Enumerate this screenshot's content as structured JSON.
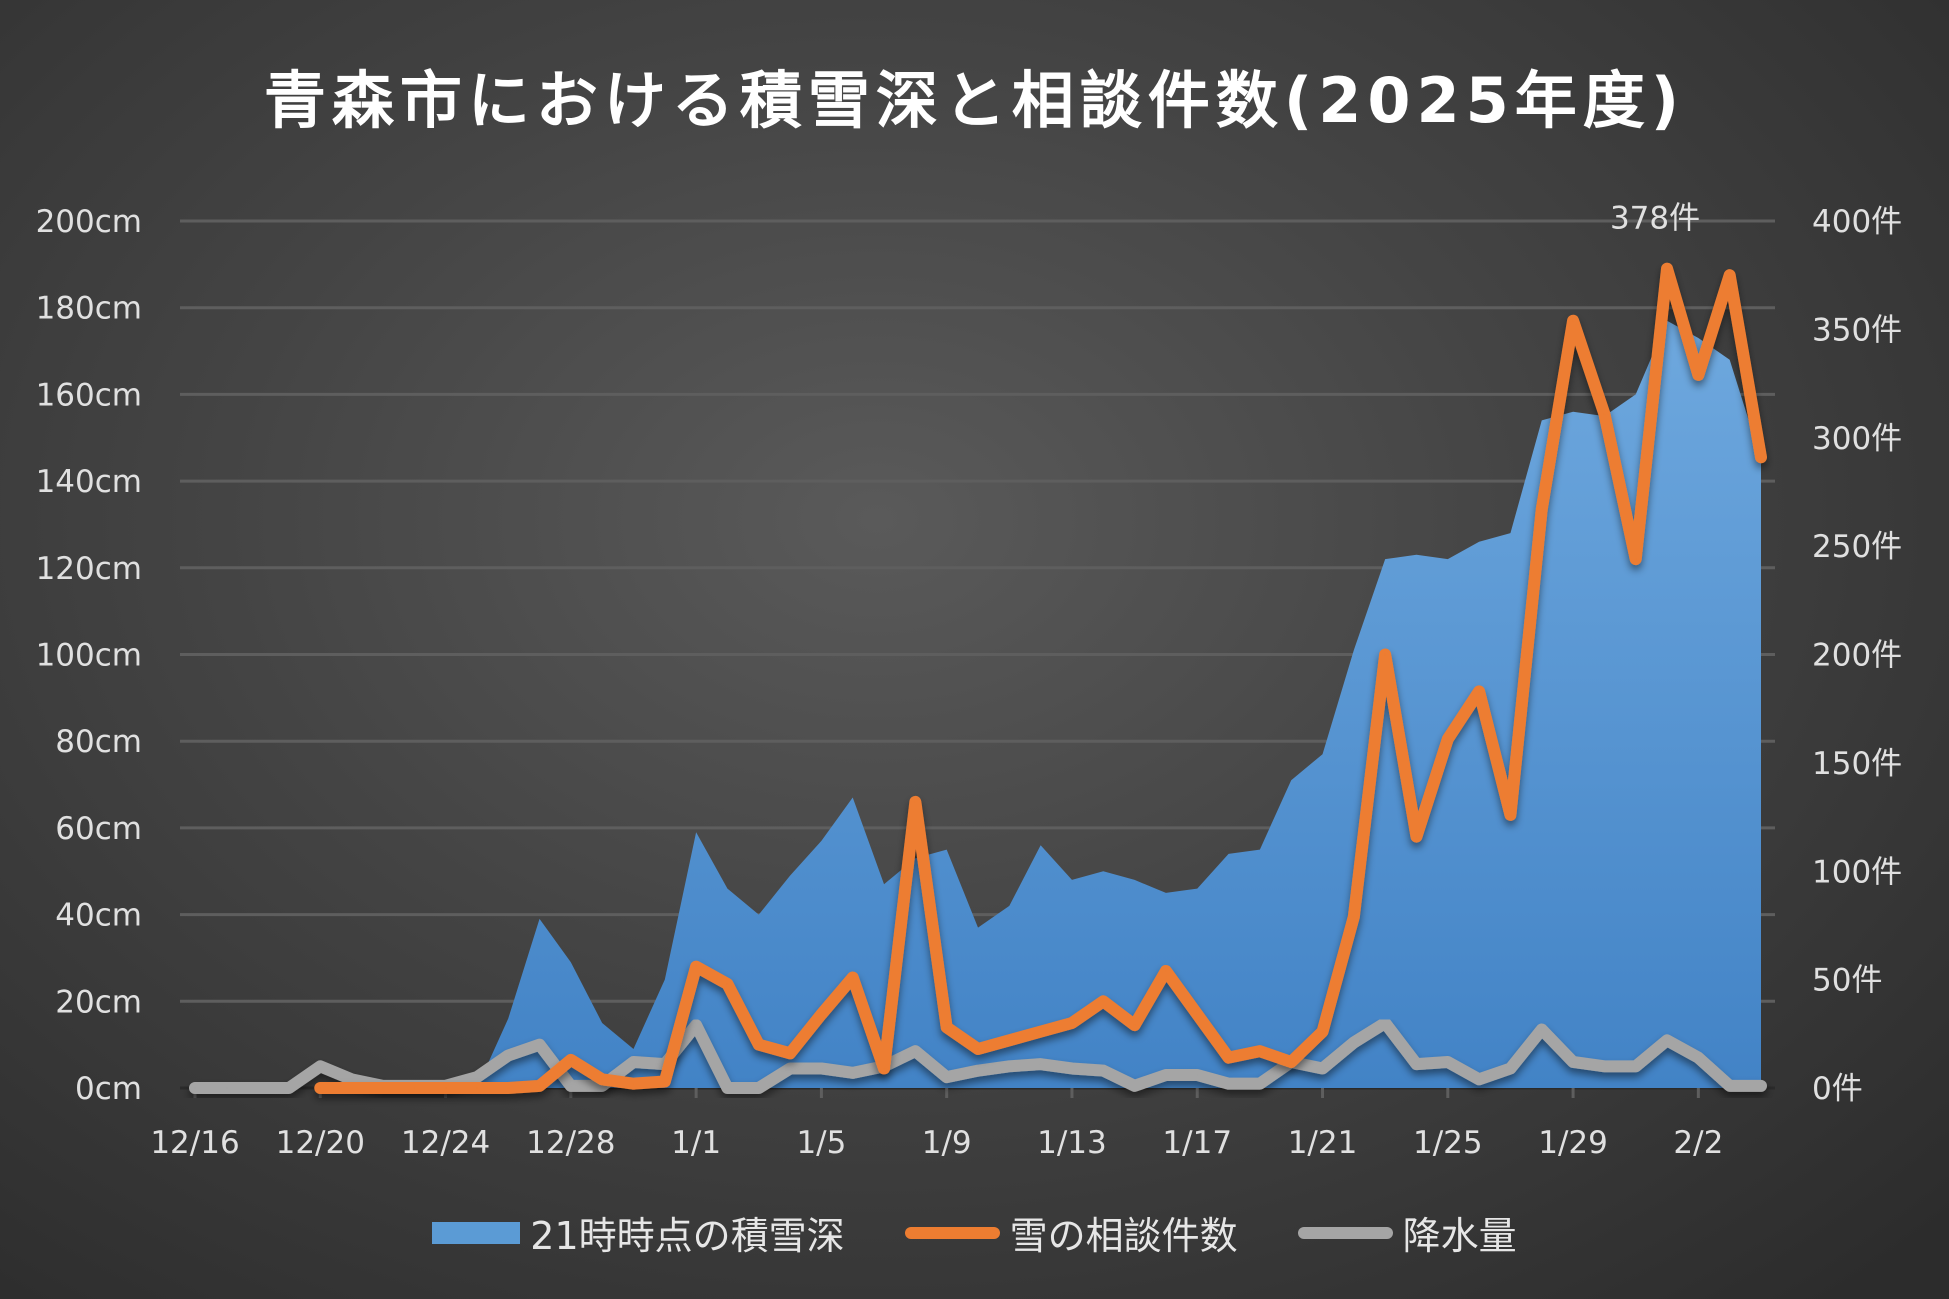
{
  "chart_data": {
    "type": "area+line",
    "title": "青森市における積雪深と相談件数(2025年度)",
    "dates": [
      "12/16",
      "12/17",
      "12/18",
      "12/19",
      "12/20",
      "12/21",
      "12/22",
      "12/23",
      "12/24",
      "12/25",
      "12/26",
      "12/27",
      "12/28",
      "12/29",
      "12/30",
      "12/31",
      "1/1",
      "1/2",
      "1/3",
      "1/4",
      "1/5",
      "1/6",
      "1/7",
      "1/8",
      "1/9",
      "1/10",
      "1/11",
      "1/12",
      "1/13",
      "1/14",
      "1/15",
      "1/16",
      "1/17",
      "1/18",
      "1/19",
      "1/20",
      "1/21",
      "1/22",
      "1/23",
      "1/24",
      "1/25",
      "1/26",
      "1/27",
      "1/28",
      "1/29",
      "1/30",
      "1/31",
      "2/1",
      "2/2",
      "2/3",
      "2/4"
    ],
    "x_tick_labels": [
      "12/16",
      "12/20",
      "12/24",
      "12/28",
      "1/1",
      "1/5",
      "1/9",
      "1/13",
      "1/17",
      "1/21",
      "1/25",
      "1/29",
      "2/2"
    ],
    "left_axis": {
      "ylim": [
        0,
        200
      ],
      "ticks": [
        "0cm",
        "20cm",
        "40cm",
        "60cm",
        "80cm",
        "100cm",
        "120cm",
        "140cm",
        "160cm",
        "180cm",
        "200cm"
      ]
    },
    "right_axis": {
      "ylim": [
        0,
        400
      ],
      "ticks": [
        "0件",
        "50件",
        "100件",
        "150件",
        "200件",
        "250件",
        "300件",
        "350件",
        "400件"
      ]
    },
    "grid": true,
    "legend_position": "bottom",
    "series": [
      {
        "name": "21時時点の積雪深",
        "type": "area",
        "axis": "left",
        "color": "#5b9bd5",
        "values": [
          0,
          0,
          0,
          0,
          0,
          0,
          0,
          0,
          0,
          0,
          16,
          39,
          29,
          15,
          9,
          25,
          59,
          46,
          40,
          49,
          57,
          67,
          47,
          53,
          55,
          37,
          42,
          56,
          48,
          50,
          48,
          45,
          46,
          54,
          55,
          71,
          77,
          101,
          122,
          123,
          122,
          126,
          128,
          154,
          156,
          155,
          160,
          177,
          173,
          168,
          145
        ]
      },
      {
        "name": "雪の相談件数",
        "type": "line",
        "axis": "right",
        "color": "#ed7d31",
        "values": [
          null,
          null,
          null,
          null,
          0,
          0,
          0,
          0,
          0,
          0,
          0,
          1,
          13,
          4,
          2,
          3,
          56,
          48,
          20,
          16,
          34,
          51,
          9,
          132,
          28,
          18,
          22,
          26,
          30,
          40,
          29,
          54,
          34,
          14,
          17,
          12,
          26,
          79,
          200,
          116,
          161,
          183,
          126,
          267,
          354,
          311,
          244,
          378,
          329,
          375,
          291
        ]
      },
      {
        "name": "降水量",
        "type": "line",
        "axis": "right",
        "color": "#a5a5a5",
        "values": [
          0,
          0,
          0,
          0,
          10,
          4,
          1,
          1,
          1,
          5,
          15,
          20,
          1,
          1,
          12,
          11,
          29,
          0,
          0,
          9,
          9,
          7,
          10,
          17,
          5,
          8,
          10,
          11,
          9,
          8,
          1,
          6,
          6,
          2,
          2,
          12,
          9,
          21,
          30,
          11,
          12,
          4,
          9,
          27,
          12,
          10,
          10,
          22,
          14,
          1,
          1
        ]
      }
    ],
    "annotations": [
      {
        "text": "378件",
        "date": "2/1",
        "series": "雪の相談件数"
      }
    ]
  }
}
